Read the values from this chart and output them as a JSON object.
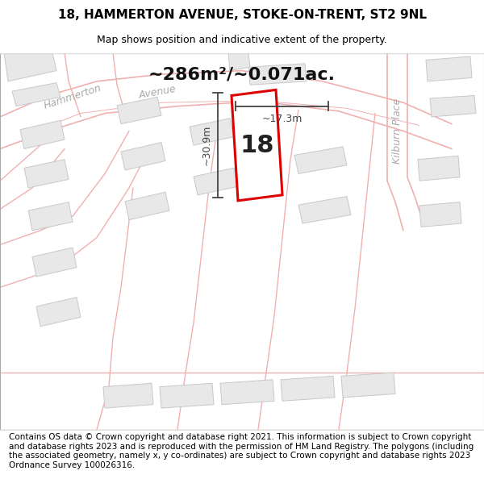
{
  "title_line1": "18, HAMMERTON AVENUE, STOKE-ON-TRENT, ST2 9NL",
  "title_line2": "Map shows position and indicative extent of the property.",
  "area_label": "~286m²/~0.071ac.",
  "property_number": "18",
  "dim_width": "~17.3m",
  "dim_height": "~30.9m",
  "footer_text": "Contains OS data © Crown copyright and database right 2021. This information is subject to Crown copyright and database rights 2023 and is reproduced with the permission of HM Land Registry. The polygons (including the associated geometry, namely x, y co-ordinates) are subject to Crown copyright and database rights 2023 Ordnance Survey 100026316.",
  "map_bg": "#ffffff",
  "road_line_color": "#f0b0b0",
  "road_fill_color": "#f5e8e8",
  "building_fill": "#e8e8e8",
  "building_edge": "#c8c8c8",
  "property_fill": "#ffffff",
  "property_border": "#dd0000",
  "dim_color": "#444444",
  "text_color": "#000000",
  "street_label_color": "#aaaaaa",
  "area_label_color": "#111111",
  "footer_bg": "#ffffff",
  "title_bg": "#ffffff",
  "title1_fontsize": 11,
  "title2_fontsize": 9,
  "area_fontsize": 16,
  "num_fontsize": 22,
  "street_fontsize": 9,
  "dim_fontsize": 9,
  "footer_fontsize": 7.5
}
